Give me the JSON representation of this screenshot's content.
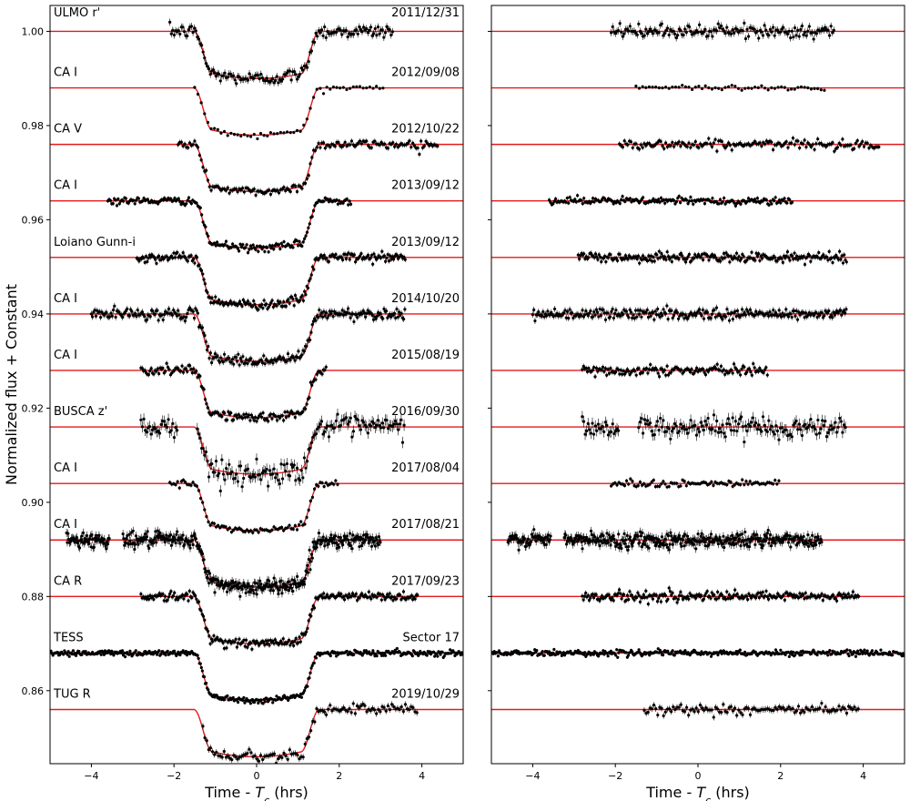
{
  "chart_data": {
    "type": "scatter",
    "ylabel": "Normalized flux + Constant",
    "x_range": [
      -5,
      5
    ],
    "y_range": [
      0.8445,
      1.0055
    ],
    "y_ticks": [
      0.86,
      0.88,
      0.9,
      0.92,
      0.94,
      0.96,
      0.98,
      1.0
    ],
    "y_tick_labels": [
      "0.86",
      "0.88",
      "0.90",
      "0.92",
      "0.94",
      "0.96",
      "0.98",
      "1.00"
    ],
    "x_ticks": [
      -4,
      -2,
      0,
      2,
      4
    ],
    "x_tick_labels": [
      "−4",
      "−2",
      "0",
      "2",
      "4"
    ],
    "colors": {
      "model": "#e41a1c",
      "points": "#000000",
      "frame": "#000000"
    },
    "grid": false,
    "transit": {
      "half_duration_hrs": 1.3,
      "ingress_hrs": 0.22,
      "depth": 0.0085
    },
    "panels": [
      {
        "name": "lightcurves",
        "xlabel": "Time - T_c (hrs)",
        "xlabel_main": "Time - ",
        "xlabel_var": "T",
        "xlabel_sub": "c",
        "xlabel_unit": " (hrs)",
        "shows_transit": true
      },
      {
        "name": "residuals",
        "xlabel": "Time - T_c (hrs)",
        "xlabel_main": "Time - ",
        "xlabel_var": "T",
        "xlabel_sub": "c",
        "xlabel_unit": " (hrs)",
        "shows_transit": false
      }
    ],
    "series": [
      {
        "name": "ULMO r'",
        "date": "2011/12/31",
        "baseline": 1.0,
        "x_start": -2.1,
        "x_end": 3.3,
        "scatter": 0.0007,
        "density": 0.8,
        "gaps": []
      },
      {
        "name": "CA I",
        "date": "2012/09/08",
        "baseline": 0.988,
        "x_start": -1.5,
        "x_end": 3.1,
        "scatter": 0.0003,
        "density": 0.35,
        "gaps": []
      },
      {
        "name": "CA V",
        "date": "2012/10/22",
        "baseline": 0.976,
        "x_start": -1.9,
        "x_end": 4.4,
        "scatter": 0.0005,
        "density": 0.7,
        "gaps": []
      },
      {
        "name": "CA I",
        "date": "2013/09/12",
        "baseline": 0.964,
        "x_start": -3.6,
        "x_end": 2.3,
        "scatter": 0.0004,
        "density": 0.9,
        "gaps": []
      },
      {
        "name": "Loiano Gunn-i",
        "date": "2013/09/12",
        "baseline": 0.952,
        "x_start": -2.9,
        "x_end": 3.6,
        "scatter": 0.0005,
        "density": 1.0,
        "gaps": []
      },
      {
        "name": "CA I",
        "date": "2014/10/20",
        "baseline": 0.94,
        "x_start": -4.0,
        "x_end": 3.6,
        "scatter": 0.0006,
        "density": 1.0,
        "gaps": []
      },
      {
        "name": "CA I",
        "date": "2015/08/19",
        "baseline": 0.928,
        "x_start": -2.8,
        "x_end": 1.7,
        "scatter": 0.0005,
        "density": 0.9,
        "gaps": []
      },
      {
        "name": "BUSCA z'",
        "date": "2016/09/30",
        "baseline": 0.916,
        "x_start": -2.8,
        "x_end": 3.6,
        "scatter": 0.0011,
        "density": 0.8,
        "gaps": [
          [
            -1.9,
            -1.45
          ]
        ]
      },
      {
        "name": "CA I",
        "date": "2017/08/04",
        "baseline": 0.904,
        "x_start": -2.1,
        "x_end": 2.0,
        "scatter": 0.0004,
        "density": 0.6,
        "gaps": []
      },
      {
        "name": "CA I",
        "date": "2017/08/21",
        "baseline": 0.892,
        "x_start": -4.6,
        "x_end": 3.0,
        "scatter": 0.0008,
        "density": 1.6,
        "gaps": [
          [
            -3.55,
            -3.25
          ]
        ]
      },
      {
        "name": "CA R",
        "date": "2017/09/23",
        "baseline": 0.88,
        "x_start": -2.8,
        "x_end": 3.9,
        "scatter": 0.0005,
        "density": 1.0,
        "gaps": []
      },
      {
        "name": "TESS",
        "date": "Sector 17",
        "baseline": 0.868,
        "x_start": -5.0,
        "x_end": 5.0,
        "scatter": 0.0003,
        "density": 1.2,
        "gaps": []
      },
      {
        "name": "TUG R",
        "date": "2019/10/29",
        "baseline": 0.856,
        "x_start": -1.3,
        "x_end": 3.9,
        "scatter": 0.0006,
        "density": 0.6,
        "gaps": []
      }
    ]
  }
}
